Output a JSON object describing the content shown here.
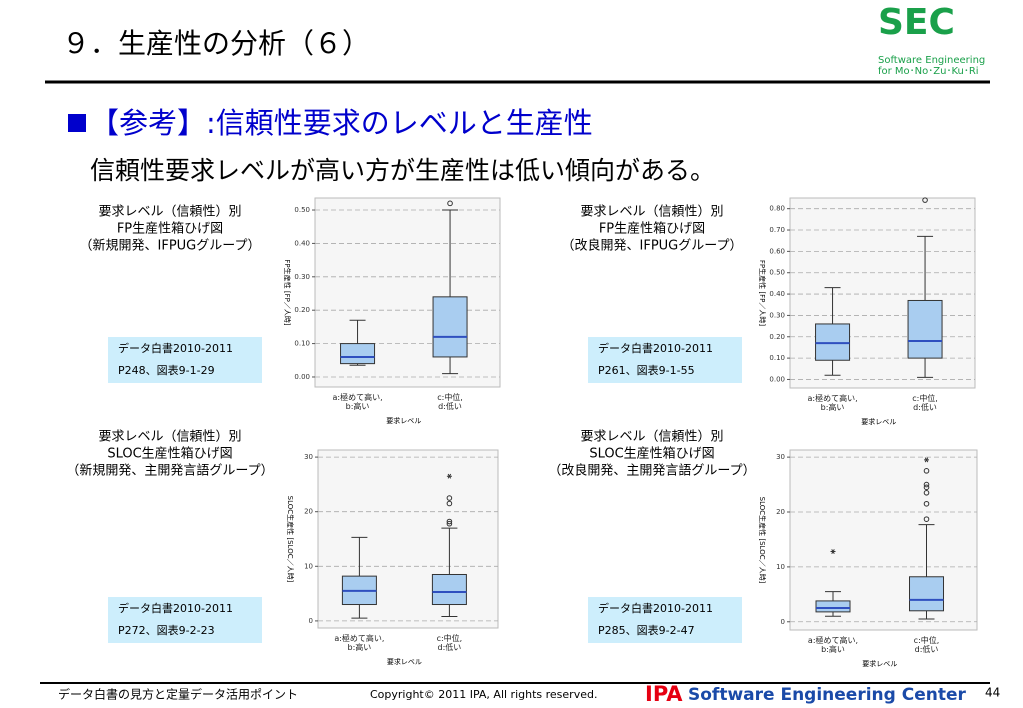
{
  "header": {
    "title": "９．生産性の分析（６）",
    "logo": "SEC",
    "logo_sub1": "Software Engineering",
    "logo_sub2": "for Mo･No･Zu･Ku･Ri"
  },
  "heading": "【参考】:信頼性要求のレベルと生産性",
  "subtitle": "信頼性要求レベルが高い方が生産性は低い傾向がある。",
  "chart_data": [
    {
      "type": "box",
      "caption": [
        "要求レベル（信頼性）別",
        "FP生産性箱ひげ図",
        "（新規開発、IFPUGグループ）"
      ],
      "source": [
        "データ白書2010-2011",
        "P248、図表9-1-29"
      ],
      "ylabel": "FP生産性 [FP／人時]",
      "xlabel": "要求レベル",
      "categories": [
        "a:極めて高い,\nb:高い",
        "c:中位,\nd:低い"
      ],
      "color": "#a9cdf0",
      "median_color": "#2f4fbf",
      "ylim": [
        -0.03,
        0.536
      ],
      "yticks": [
        {
          "value": 0,
          "label": "0.00"
        },
        {
          "value": 0.1,
          "label": "0.10"
        },
        {
          "value": 0.2,
          "label": "0.20"
        },
        {
          "value": 0.3,
          "label": "0.30"
        },
        {
          "value": 0.4,
          "label": "0.40"
        },
        {
          "value": 0.5,
          "label": "0.50"
        }
      ],
      "boxes": [
        {
          "whisker_low": 0.035,
          "q1": 0.04,
          "median": 0.06,
          "q3": 0.1,
          "whisker_high": 0.17,
          "outliers": [],
          "extremes": []
        },
        {
          "whisker_low": 0.01,
          "q1": 0.06,
          "median": 0.12,
          "q3": 0.24,
          "whisker_high": 0.5,
          "outliers": [
            0.52
          ],
          "extremes": []
        }
      ]
    },
    {
      "type": "box",
      "caption": [
        "要求レベル（信頼性）別",
        "FP生産性箱ひげ図",
        "（改良開発、IFPUGグループ）"
      ],
      "source": [
        "データ白書2010-2011",
        "P261、図表9-1-55"
      ],
      "ylabel": "FP生産性 [FP／人時]",
      "xlabel": "要求レベル",
      "categories": [
        "a:極めて高い,\nb:高い",
        "c:中位,\nd:低い"
      ],
      "color": "#a9cdf0",
      "median_color": "#2f4fbf",
      "ylim": [
        -0.04,
        0.85
      ],
      "yticks": [
        {
          "value": 0,
          "label": "0.00"
        },
        {
          "value": 0.1,
          "label": "0.10"
        },
        {
          "value": 0.2,
          "label": "0.20"
        },
        {
          "value": 0.3,
          "label": "0.30"
        },
        {
          "value": 0.4,
          "label": "0.40"
        },
        {
          "value": 0.5,
          "label": "0.50"
        },
        {
          "value": 0.6,
          "label": "0.60"
        },
        {
          "value": 0.7,
          "label": "0.70"
        },
        {
          "value": 0.8,
          "label": "0.80"
        }
      ],
      "boxes": [
        {
          "whisker_low": 0.02,
          "q1": 0.09,
          "median": 0.17,
          "q3": 0.26,
          "whisker_high": 0.43,
          "outliers": [],
          "extremes": []
        },
        {
          "whisker_low": 0.01,
          "q1": 0.1,
          "median": 0.18,
          "q3": 0.37,
          "whisker_high": 0.67,
          "outliers": [
            0.84
          ],
          "extremes": []
        }
      ]
    },
    {
      "type": "box",
      "caption": [
        "要求レベル（信頼性）別",
        "SLOC生産性箱ひげ図",
        "（新規開発、主開発言語グループ）"
      ],
      "source": [
        "データ白書2010-2011",
        "P272、図表9-2-23"
      ],
      "ylabel": "SLOC生産性 [SLOC／人時]",
      "xlabel": "要求レベル",
      "categories": [
        "a:極めて高い,\nb:高い",
        "c:中位,\nd:低い"
      ],
      "color": "#a9cdf0",
      "median_color": "#2f4fbf",
      "ylim": [
        -1.3,
        31.3
      ],
      "yticks": [
        0,
        10,
        20,
        30
      ],
      "boxes": [
        {
          "whisker_low": 0.5,
          "q1": 3,
          "median": 5.5,
          "q3": 8.2,
          "whisker_high": 15.3,
          "outliers": [],
          "extremes": []
        },
        {
          "whisker_low": 0.8,
          "q1": 3,
          "median": 5.3,
          "q3": 8.5,
          "whisker_high": 17,
          "outliers": [
            17.8,
            18.2,
            21.5,
            22.5
          ],
          "extremes": [
            26.5
          ]
        }
      ]
    },
    {
      "type": "box",
      "caption": [
        "要求レベル（信頼性）別",
        "SLOC生産性箱ひげ図",
        "（改良開発、主開発言語グループ）"
      ],
      "source": [
        "データ白書2010-2011",
        "P285、図表9-2-47"
      ],
      "ylabel": "SLOC生産性 [SLOC／人時]",
      "xlabel": "要求レベル",
      "categories": [
        "a:極めて高い,\nb:高い",
        "c:中位,\nd:低い"
      ],
      "color": "#a9cdf0",
      "median_color": "#2f4fbf",
      "ylim": [
        -1.5,
        31.3
      ],
      "yticks": [
        0,
        10,
        20,
        30
      ],
      "boxes": [
        {
          "whisker_low": 1,
          "q1": 1.8,
          "median": 2.5,
          "q3": 3.8,
          "whisker_high": 5.5,
          "outliers": [],
          "extremes": [
            12.8
          ]
        },
        {
          "whisker_low": 0.5,
          "q1": 2,
          "median": 4,
          "q3": 8.2,
          "whisker_high": 17.7,
          "outliers": [
            18.7,
            21.5,
            23.5,
            24.5,
            25,
            27.5
          ],
          "extremes": [
            29.5
          ]
        }
      ]
    }
  ],
  "footer": {
    "left": "データ白書の見方と定量データ活用ポイント",
    "copyright": "Copyright© 2011 IPA, All rights reserved.",
    "ipa": "IPA",
    "center": "Software Engineering Center",
    "page": "44"
  }
}
